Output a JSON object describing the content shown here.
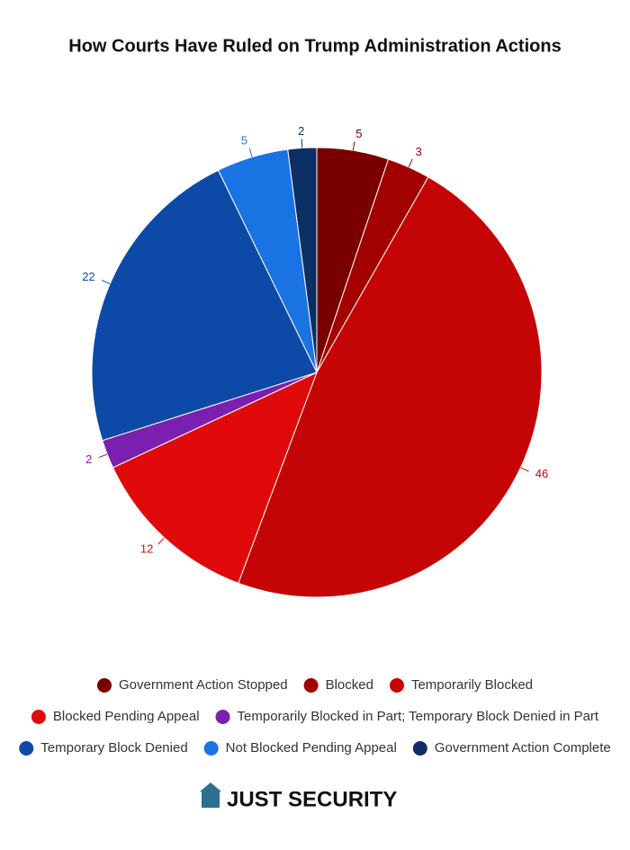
{
  "chart_data": {
    "type": "pie",
    "title": "How Courts Have Ruled on Trump Administration Actions",
    "categories": [
      "Government Action Stopped",
      "Blocked",
      "Temporarily Blocked",
      "Blocked Pending Appeal",
      "Temporarily Blocked in Part; Temporary Block Denied in Part",
      "Temporary Block Denied",
      "Not Blocked Pending Appeal",
      "Government Action Complete"
    ],
    "values": [
      5,
      3,
      46,
      12,
      2,
      22,
      5,
      2
    ],
    "colors": [
      "#7a0000",
      "#a30000",
      "#c50505",
      "#e00a0a",
      "#7a1fb0",
      "#0d4aa8",
      "#1a73e3",
      "#0c2f66"
    ],
    "legend": "bottom"
  },
  "branding": "JUST SECURITY"
}
